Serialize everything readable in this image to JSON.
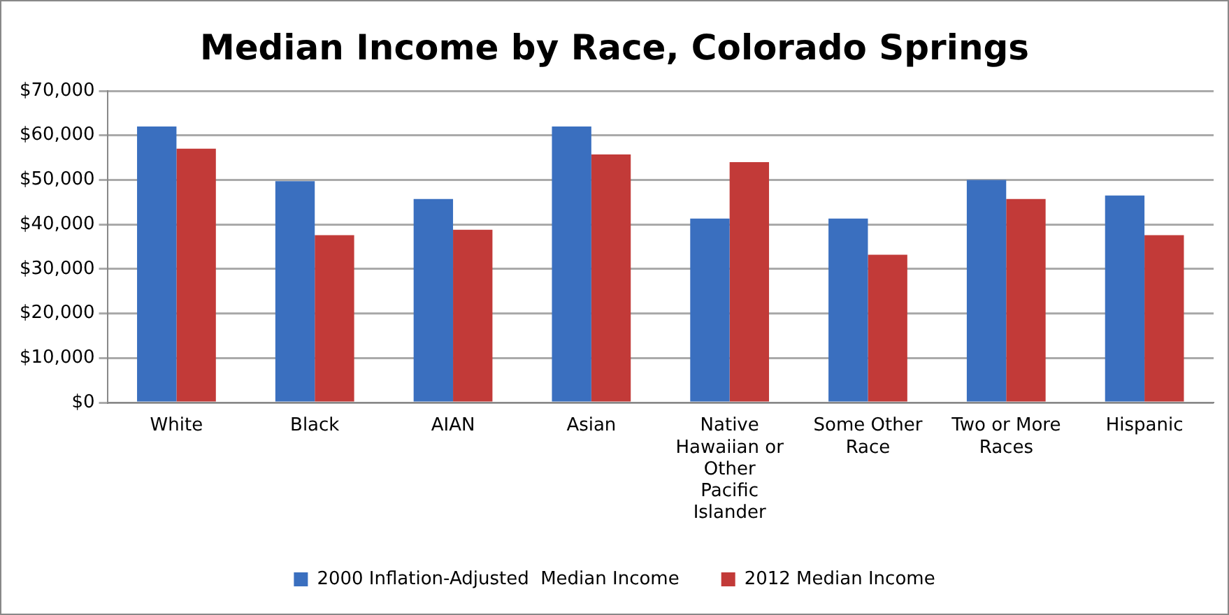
{
  "chart_data": {
    "type": "bar",
    "title": "Median Income by Race, Colorado Springs",
    "categories": [
      "White",
      "Black",
      "AIAN",
      "Asian",
      "Native Hawaiian or Other Pacific Islander",
      "Some Other Race",
      "Two or More Races",
      "Hispanic"
    ],
    "series": [
      {
        "name": "2000 Inflation-Adjusted  Median Income",
        "color": "#3a6fbf",
        "values": [
          62000,
          49700,
          45700,
          62000,
          41300,
          41300,
          50000,
          46500
        ]
      },
      {
        "name": "2012 Median Income",
        "color": "#c23a38",
        "values": [
          57000,
          37600,
          38800,
          55700,
          54000,
          33200,
          45700,
          37600
        ]
      }
    ],
    "ylim": [
      0,
      70000
    ],
    "yticks": [
      {
        "value": 0,
        "label": "$0"
      },
      {
        "value": 10000,
        "label": "$10,000"
      },
      {
        "value": 20000,
        "label": "$20,000"
      },
      {
        "value": 30000,
        "label": "$30,000"
      },
      {
        "value": 40000,
        "label": "$40,000"
      },
      {
        "value": 50000,
        "label": "$50,000"
      },
      {
        "value": 60000,
        "label": "$60,000"
      },
      {
        "value": 70000,
        "label": "$70,000"
      }
    ],
    "grid": "y",
    "legend": "bottom"
  }
}
